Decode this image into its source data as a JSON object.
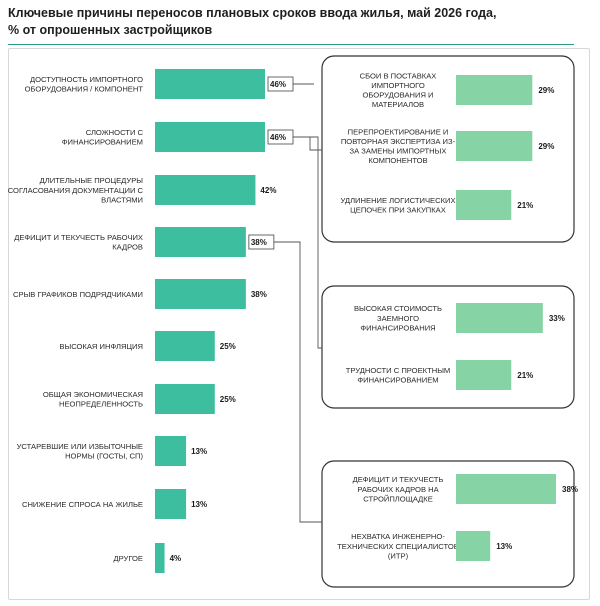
{
  "title_line1": "Ключевые причины переносов плановых сроков ввода жилья, май 2026 года,",
  "title_line2": "% от опрошенных  застройщиков",
  "colors": {
    "main_bar": "#3dbf9f",
    "sub_bar": "#86d4a6",
    "accent_rule": "#2e9a84",
    "connector": "#555555"
  },
  "chart_data": {
    "type": "bar",
    "orientation": "horizontal",
    "unit": "%",
    "main": {
      "categories": [
        [
          "ДОСТУПНОСТЬ ИМПОРТНОГО",
          "ОБОРУДОВАНИЯ / КОМПОНЕНТ"
        ],
        [
          "СЛОЖНОСТИ С",
          "ФИНАНСИРОВАНИЕМ"
        ],
        [
          "ДЛИТЕЛЬНЫЕ ПРОЦЕДУРЫ",
          "СОГЛАСОВАНИЯ ДОКУМЕНТАЦИИ С",
          "ВЛАСТЯМИ"
        ],
        [
          "ДЕФИЦИТ И ТЕКУЧЕСТЬ РАБОЧИХ",
          "КАДРОВ"
        ],
        [
          "СРЫВ ГРАФИКОВ ПОДРЯДЧИКАМИ"
        ],
        [
          "ВЫСОКАЯ ИНФЛЯЦИЯ"
        ],
        [
          "ОБЩАЯ ЭКОНОМИЧЕСКАЯ",
          "НЕОПРЕДЕЛЕННОСТЬ"
        ],
        [
          "УСТАРЕВШИЕ ИЛИ ИЗБЫТОЧНЫЕ",
          "НОРМЫ (ГОСТЫ, СП)"
        ],
        [
          "СНИЖЕНИЕ СПРОСА НА ЖИЛЬЕ"
        ],
        [
          "ДРУГОЕ"
        ]
      ],
      "values": [
        46,
        46,
        42,
        38,
        38,
        25,
        25,
        13,
        13,
        4
      ],
      "labels": [
        "46%",
        "46%",
        "42%",
        "38%",
        "38%",
        "25%",
        "25%",
        "13%",
        "13%",
        "4%"
      ],
      "boxed": [
        true,
        true,
        false,
        true,
        false,
        false,
        false,
        false,
        false,
        false
      ]
    },
    "breakdowns": [
      {
        "parent": "ДОСТУПНОСТЬ ИМПОРТНОГО ОБОРУДОВАНИЯ / КОМПОНЕНТ",
        "categories": [
          [
            "СБОИ В ПОСТАВКАХ",
            "ИМПОРТНОГО",
            "ОБОРУДОВАНИЯ И",
            "МАТЕРИАЛОВ"
          ],
          [
            "ПЕРЕПРОЕКТИРОВАНИЕ И",
            "ПОВТОРНАЯ ЭКСПЕРТИЗА ИЗ-",
            "ЗА ЗАМЕНЫ ИМПОРТНЫХ",
            "КОМПОНЕНТОВ"
          ],
          [
            "УДЛИНЕНИЕ ЛОГИСТИЧЕСКИХ",
            "ЦЕПОЧЕК ПРИ ЗАКУПКАХ"
          ]
        ],
        "values": [
          29,
          29,
          21
        ],
        "labels": [
          "29%",
          "29%",
          "21%"
        ]
      },
      {
        "parent": "СЛОЖНОСТИ С ФИНАНСИРОВАНИЕМ",
        "categories": [
          [
            "ВЫСОКАЯ СТОИМОСТЬ",
            "ЗАЕМНОГО",
            "ФИНАНСИРОВАНИЯ"
          ],
          [
            "ТРУДНОСТИ С ПРОЕКТНЫМ",
            "ФИНАНСИРОВАНИЕМ"
          ]
        ],
        "values": [
          33,
          21
        ],
        "labels": [
          "33%",
          "21%"
        ]
      },
      {
        "parent": "ДЕФИЦИТ И ТЕКУЧЕСТЬ РАБОЧИХ КАДРОВ",
        "categories": [
          [
            "ДЕФИЦИТ И ТЕКУЧЕСТЬ",
            "РАБОЧИХ КАДРОВ НА",
            "СТРОЙПЛОЩАДКЕ"
          ],
          [
            "НЕХВАТКА ИНЖЕНЕРНО-",
            "ТЕХНИЧЕСКИХ СПЕЦИАЛИСТОВ",
            "(ИТР)"
          ]
        ],
        "values": [
          38,
          13
        ],
        "labels": [
          "38%",
          "13%"
        ]
      }
    ]
  }
}
